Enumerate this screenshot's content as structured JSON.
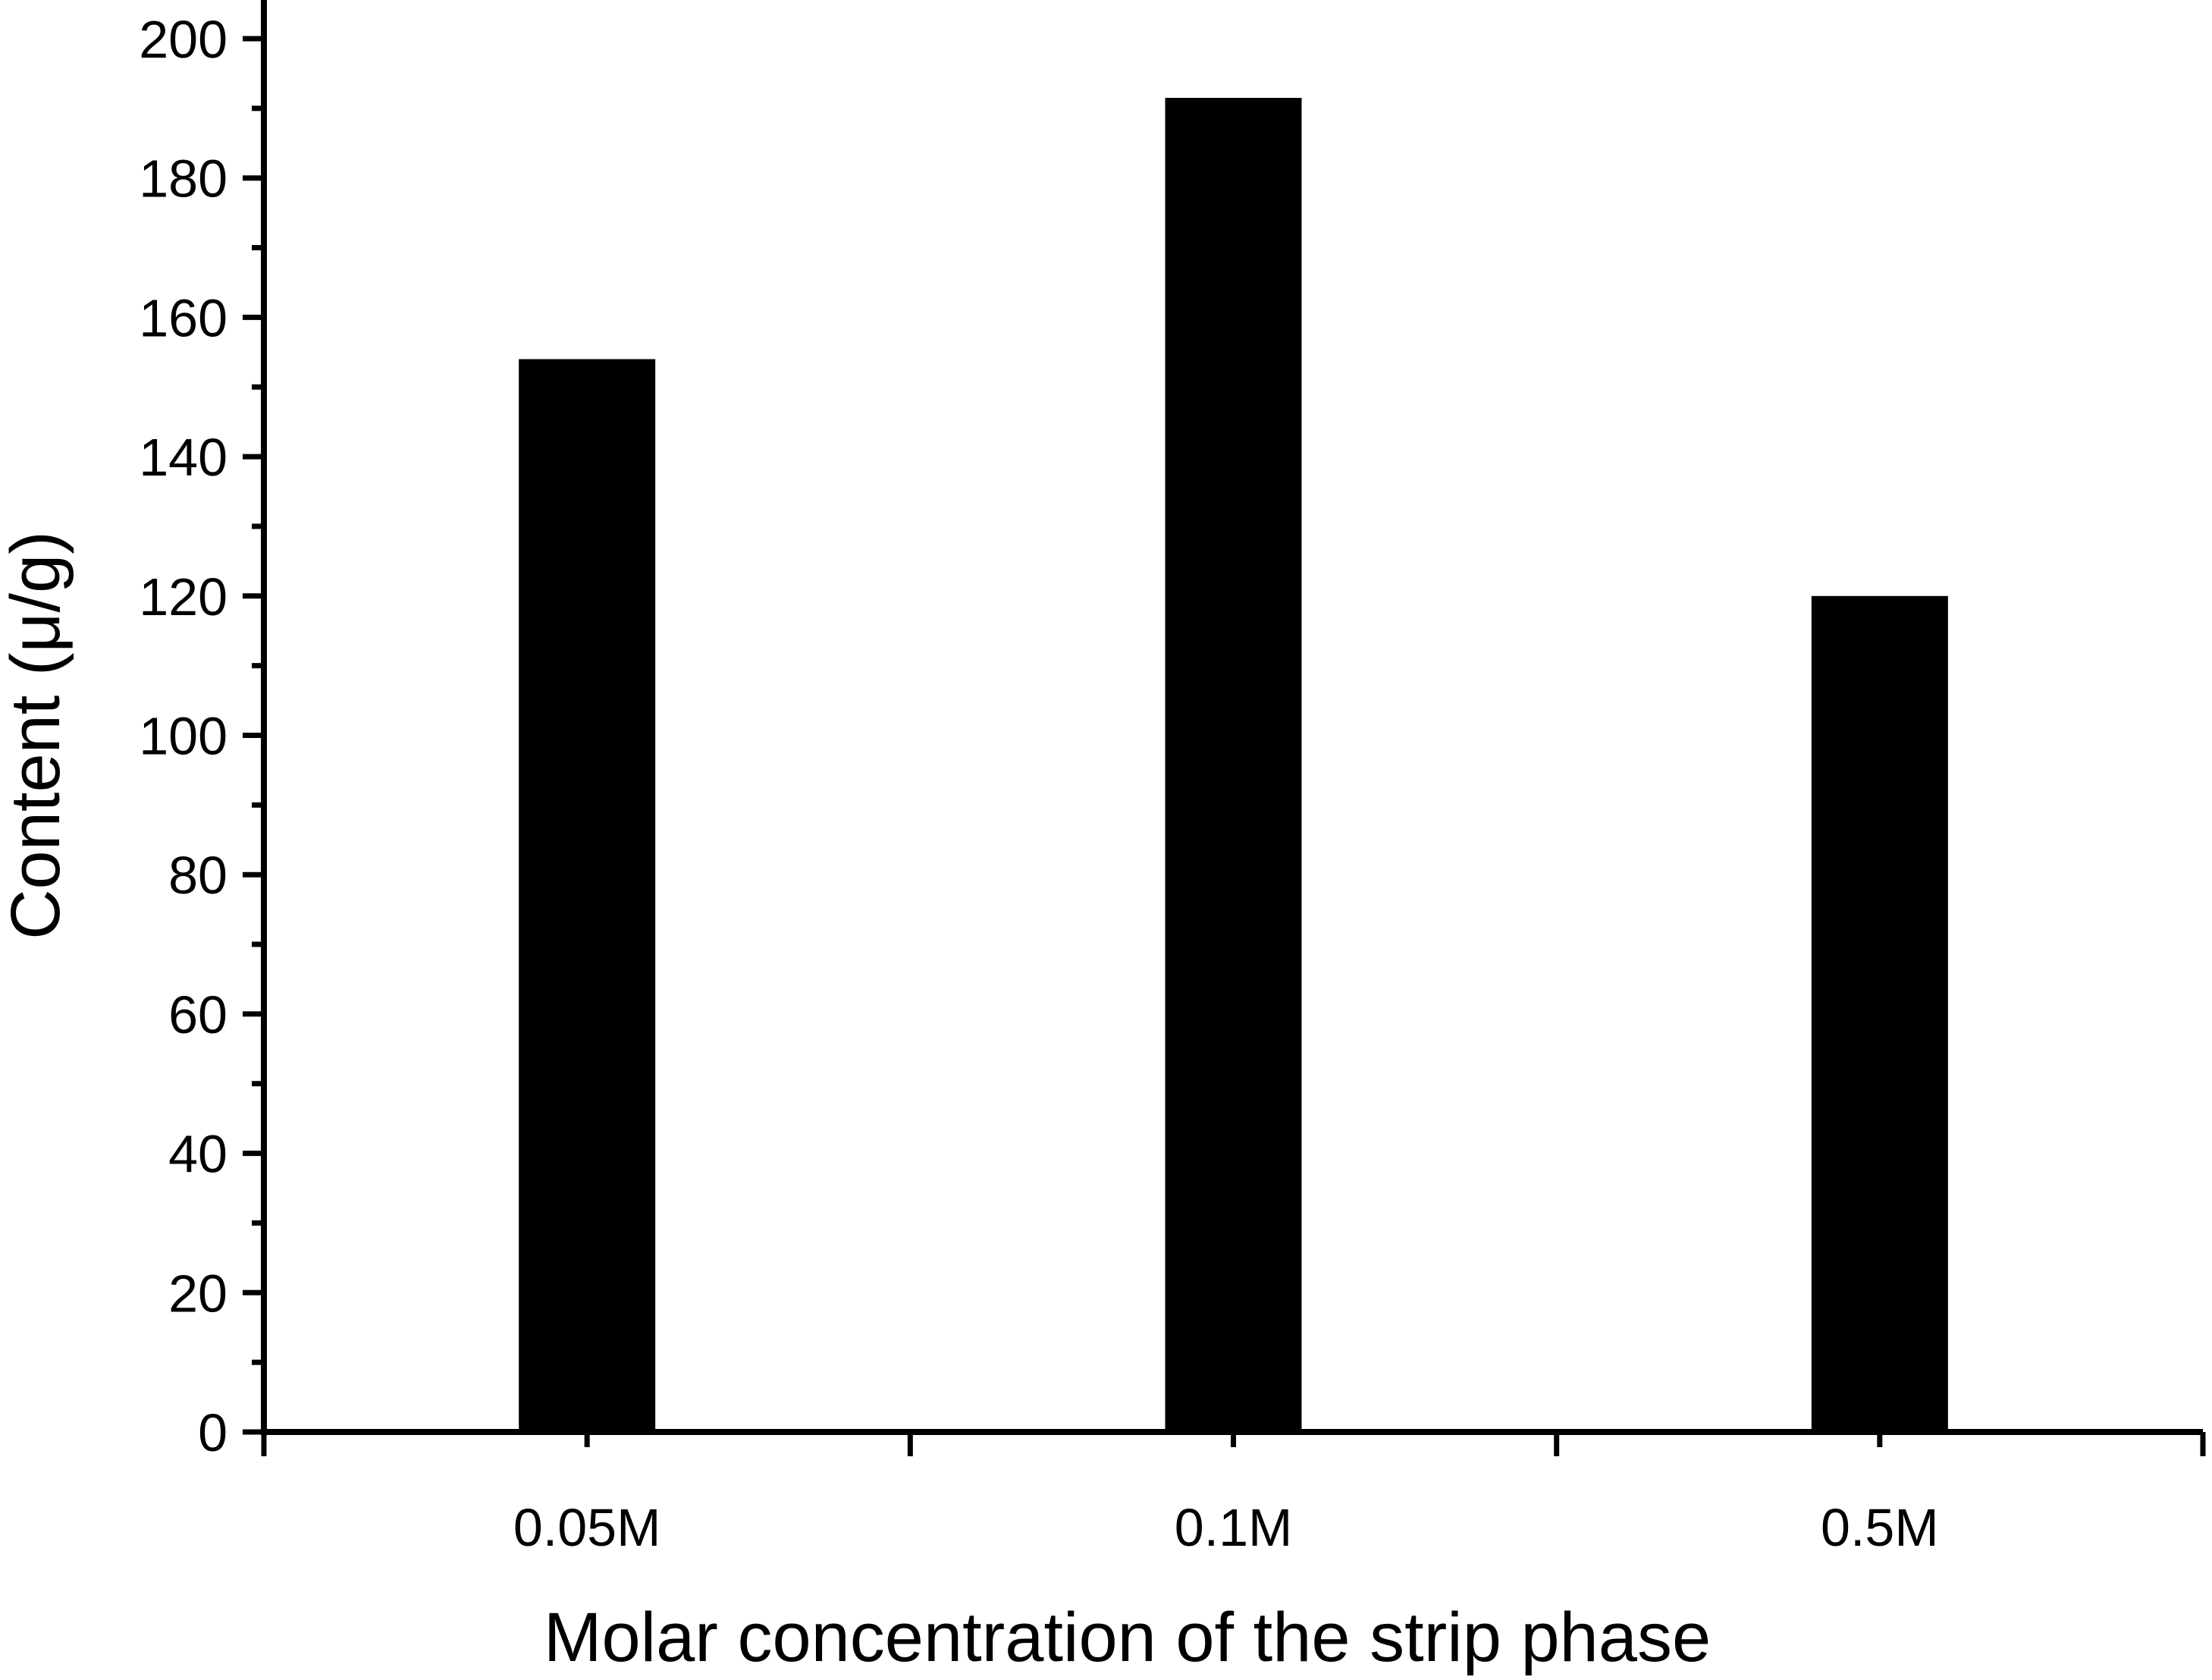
{
  "chart_data": {
    "type": "bar",
    "title": "",
    "xlabel": "Molar concentration of the strip phase",
    "ylabel": "Content (μ/g)",
    "categories": [
      "0.05M",
      "0.1M",
      "0.5M"
    ],
    "values": [
      154,
      191.5,
      120
    ],
    "ylim": [
      0,
      200
    ],
    "ytick_labels": [
      "0",
      "20",
      "40",
      "60",
      "80",
      "100",
      "120",
      "140",
      "160",
      "180",
      "200"
    ],
    "grid": false,
    "legend": "none",
    "bar_color": "#000000"
  }
}
